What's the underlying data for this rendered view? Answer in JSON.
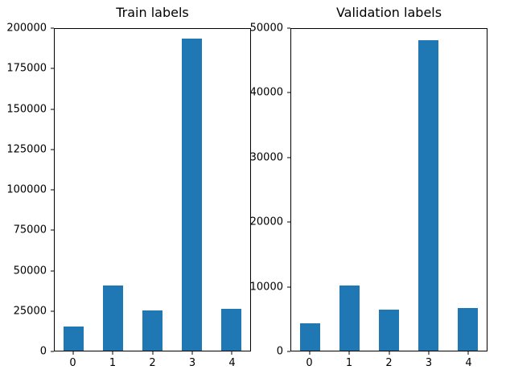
{
  "figure": {
    "background": "#ffffff",
    "bar_color": "#1f77b4"
  },
  "chart_data": [
    {
      "type": "bar",
      "title": "Train labels",
      "categories": [
        "0",
        "1",
        "2",
        "3",
        "4"
      ],
      "values": [
        15000,
        40500,
        25000,
        194000,
        26000
      ],
      "xlabel": "",
      "ylabel": "",
      "ylim": [
        0,
        200000
      ],
      "yticks": [
        0,
        25000,
        50000,
        75000,
        100000,
        125000,
        150000,
        175000,
        200000
      ],
      "grid": false,
      "legend": false
    },
    {
      "type": "bar",
      "title": "Validation labels",
      "categories": [
        "0",
        "1",
        "2",
        "3",
        "4"
      ],
      "values": [
        4300,
        10100,
        6400,
        48300,
        6600
      ],
      "xlabel": "",
      "ylabel": "",
      "ylim": [
        0,
        50000
      ],
      "yticks": [
        0,
        10000,
        20000,
        30000,
        40000,
        50000
      ],
      "grid": false,
      "legend": false
    }
  ]
}
